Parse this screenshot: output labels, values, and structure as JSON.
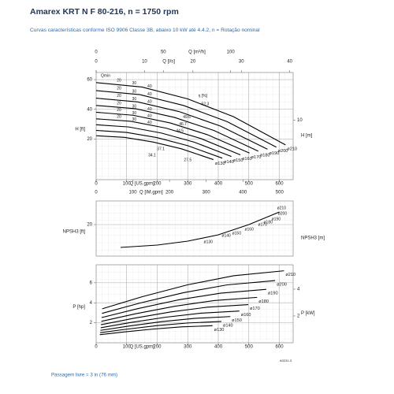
{
  "chart_data": [
    {
      "type": "line",
      "title": "Amarex KRT N F 80-216, n = 1750 rpm",
      "subtitle": "Curvas características conforme ISO 9906 Classe 3B, abaixo 10 kW até 4.4.2, n = Rotação nominal",
      "xlabel": "Q [US.gpm]",
      "xlim": [
        0,
        645
      ],
      "xticks": [
        0,
        100,
        200,
        300,
        400,
        500,
        600
      ],
      "secondary_x": [
        {
          "position": "top",
          "label": "Q [m³/h]",
          "lim": [
            0,
            146.5
          ],
          "ticks": [
            0,
            50,
            100
          ]
        },
        {
          "position": "top",
          "label": "Q [l/s]",
          "lim": [
            0,
            40.7
          ],
          "ticks": [
            0,
            10,
            20,
            30,
            40
          ]
        },
        {
          "position": "bottom",
          "label": "Q [IM.gpm]",
          "lim": [
            0,
            537
          ],
          "ticks": [
            0,
            100,
            200,
            300,
            400,
            500
          ]
        }
      ],
      "ylabel": "H [ft]",
      "ylim": [
        -7.4,
        64.8
      ],
      "yticks": [
        20,
        40,
        60
      ],
      "y2label": "H [m]",
      "y2lim": [
        -2.26,
        19.75
      ],
      "y2ticks": [
        10
      ],
      "grid": true,
      "series": [
        {
          "name": "ø210",
          "color": "#000000",
          "x": [
            0,
            150,
            300,
            450,
            620
          ],
          "values": [
            58,
            55,
            47,
            35,
            16
          ]
        },
        {
          "name": "ø200",
          "color": "#000000",
          "x": [
            0,
            143,
            286,
            429,
            590
          ],
          "values": [
            52.6,
            49.9,
            42.6,
            31.7,
            14.5
          ]
        },
        {
          "name": "ø190",
          "color": "#000000",
          "x": [
            0,
            136,
            271,
            407,
            561
          ],
          "values": [
            47.5,
            45.0,
            38.5,
            28.7,
            13.1
          ]
        },
        {
          "name": "ø180",
          "color": "#000000",
          "x": [
            0,
            129,
            257,
            386,
            531
          ],
          "values": [
            42.6,
            40.4,
            34.5,
            25.7,
            11.8
          ]
        },
        {
          "name": "ø170",
          "color": "#000000",
          "x": [
            0,
            121,
            243,
            364,
            502
          ],
          "values": [
            38.0,
            36.0,
            30.8,
            22.9,
            10.5
          ]
        },
        {
          "name": "ø160",
          "color": "#000000",
          "x": [
            0,
            114,
            229,
            343,
            472
          ],
          "values": [
            33.6,
            31.9,
            27.3,
            20.3,
            9.3
          ]
        },
        {
          "name": "ø150",
          "color": "#000000",
          "x": [
            0,
            107,
            214,
            321,
            443
          ],
          "values": [
            29.6,
            28.1,
            24.0,
            17.9,
            8.2
          ]
        },
        {
          "name": "ø140",
          "color": "#000000",
          "x": [
            0,
            100,
            200,
            300,
            413
          ],
          "values": [
            25.8,
            24.4,
            20.9,
            15.5,
            7.1
          ]
        },
        {
          "name": "ø130",
          "color": "#000000",
          "x": [
            0,
            93,
            186,
            279,
            384
          ],
          "values": [
            22.2,
            21.1,
            18.0,
            13.4,
            6.1
          ]
        }
      ],
      "annotations": [
        {
          "text": "Qmin",
          "x": 31,
          "y": 62.6
        },
        {
          "text": "η [%]",
          "x": 349,
          "y": 49
        },
        {
          "text": "52.3",
          "x": 357,
          "y": 43.5
        },
        {
          "text": "49.6",
          "x": 297,
          "y": 34.7
        },
        {
          "text": "46.7",
          "x": 284,
          "y": 30
        },
        {
          "text": "44.5",
          "x": 274,
          "y": 25.3
        },
        {
          "text": "37.1",
          "x": 212,
          "y": 13.2
        },
        {
          "text": "34.1",
          "x": 183,
          "y": 8.9
        },
        {
          "text": "27.5",
          "x": 300,
          "y": 5.8
        },
        {
          "text": "20",
          "x": 75,
          "y": 59.5
        },
        {
          "text": "30",
          "x": 125,
          "y": 57.5
        },
        {
          "text": "40",
          "x": 175,
          "y": 55.5
        },
        {
          "text": "20",
          "x": 75,
          "y": 54
        },
        {
          "text": "30",
          "x": 125,
          "y": 52
        },
        {
          "text": "40",
          "x": 175,
          "y": 50
        },
        {
          "text": "20",
          "x": 75,
          "y": 49
        },
        {
          "text": "30",
          "x": 125,
          "y": 47
        },
        {
          "text": "40",
          "x": 175,
          "y": 45
        },
        {
          "text": "20",
          "x": 75,
          "y": 44
        },
        {
          "text": "30",
          "x": 125,
          "y": 42
        },
        {
          "text": "40",
          "x": 175,
          "y": 40
        },
        {
          "text": "20",
          "x": 75,
          "y": 39.5
        },
        {
          "text": "30",
          "x": 125,
          "y": 37.5
        },
        {
          "text": "40",
          "x": 175,
          "y": 35.5
        },
        {
          "text": "20",
          "x": 75,
          "y": 35
        },
        {
          "text": "30",
          "x": 125,
          "y": 33
        },
        {
          "text": "40",
          "x": 175,
          "y": 31
        }
      ]
    },
    {
      "type": "line",
      "xlim": [
        0,
        645
      ],
      "ylabel": "NPSH3 [ft]",
      "ylim": [
        0,
        35
      ],
      "yticks": [
        20
      ],
      "y2label": "NPSH3 [m]",
      "grid": true,
      "series": [
        {
          "color": "#000000",
          "x": [
            80,
            200,
            300,
            400,
            500,
            600
          ],
          "values": [
            5.5,
            7,
            9.5,
            13.5,
            20,
            28
          ]
        }
      ],
      "annotations": [
        {
          "text": "ø130",
          "x": 367,
          "y": 9
        },
        {
          "text": "ø140",
          "x": 426,
          "y": 13
        },
        {
          "text": "ø150",
          "x": 460,
          "y": 14.5
        },
        {
          "text": "ø160",
          "x": 501,
          "y": 17
        },
        {
          "text": "ø170",
          "x": 545,
          "y": 20
        },
        {
          "text": "ø180",
          "x": 563,
          "y": 21.5
        },
        {
          "text": "ø190",
          "x": 589,
          "y": 23.5
        },
        {
          "text": "ø200",
          "x": 610,
          "y": 27
        },
        {
          "text": "ø210",
          "x": 607,
          "y": 30.5
        }
      ]
    },
    {
      "type": "line",
      "xlabel": "Q [US.gpm]",
      "xlim": [
        0,
        645
      ],
      "xticks": [
        0,
        100,
        200,
        300,
        400,
        500,
        600
      ],
      "ylabel": "P [hp]",
      "ylim": [
        0,
        7.8
      ],
      "yticks": [
        2,
        4,
        6
      ],
      "y2label": "P [kW]",
      "y2lim": [
        0,
        5.82
      ],
      "y2ticks": [
        2,
        4
      ],
      "grid": true,
      "series": [
        {
          "name": "ø210",
          "color": "#000000",
          "x": [
            20,
            150,
            300,
            450,
            615
          ],
          "values": [
            3.4,
            4.6,
            5.8,
            6.7,
            7.2
          ]
        },
        {
          "name": "ø200",
          "color": "#000000",
          "x": [
            19,
            143,
            286,
            429,
            586
          ],
          "values": [
            2.94,
            3.97,
            5.01,
            5.79,
            6.22
          ]
        },
        {
          "name": "ø190",
          "color": "#000000",
          "x": [
            18,
            136,
            271,
            407,
            557
          ],
          "values": [
            2.52,
            3.41,
            4.3,
            4.96,
            5.34
          ]
        },
        {
          "name": "ø180",
          "color": "#000000",
          "x": [
            17,
            129,
            257,
            386,
            527
          ],
          "values": [
            2.14,
            2.9,
            3.65,
            4.22,
            4.54
          ]
        },
        {
          "name": "ø170",
          "color": "#000000",
          "x": [
            16,
            121,
            243,
            364,
            498
          ],
          "values": [
            1.81,
            2.44,
            3.08,
            3.56,
            3.82
          ]
        },
        {
          "name": "ø160",
          "color": "#000000",
          "x": [
            15,
            114,
            229,
            343,
            469
          ],
          "values": [
            1.5,
            2.03,
            2.56,
            2.96,
            3.18
          ]
        },
        {
          "name": "ø150",
          "color": "#000000",
          "x": [
            14,
            107,
            214,
            321,
            439
          ],
          "values": [
            1.24,
            1.67,
            2.11,
            2.44,
            2.62
          ]
        },
        {
          "name": "ø140",
          "color": "#000000",
          "x": [
            13,
            100,
            200,
            300,
            410
          ],
          "values": [
            1.01,
            1.36,
            1.72,
            1.98,
            2.13
          ]
        },
        {
          "name": "ø130",
          "color": "#000000",
          "x": [
            12,
            93,
            186,
            279,
            381
          ],
          "values": [
            0.81,
            1.09,
            1.37,
            1.59,
            1.71
          ]
        }
      ],
      "note": "Passagem livre = 3 in (76 mm)",
      "code": "A0231-3"
    }
  ]
}
